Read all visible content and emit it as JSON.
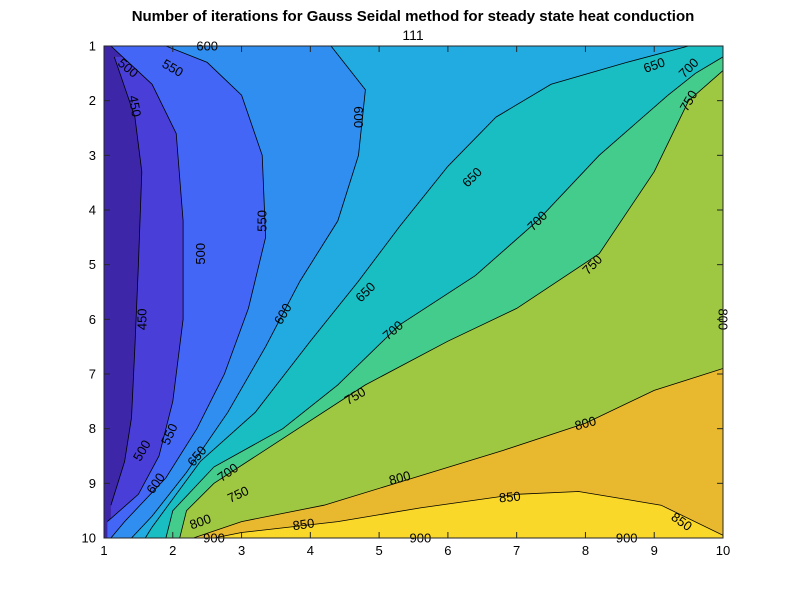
{
  "chart_data": {
    "type": "contour",
    "title": "Number of iterations for Gauss Seidal method for steady state heat conduction",
    "subtitle": "111",
    "xlim": [
      1,
      10
    ],
    "ylim": [
      1,
      10
    ],
    "y_reversed": true,
    "x_ticks": [
      "1",
      "2",
      "3",
      "4",
      "5",
      "6",
      "7",
      "8",
      "9",
      "10"
    ],
    "y_ticks": [
      "1",
      "2",
      "3",
      "4",
      "5",
      "6",
      "7",
      "8",
      "9",
      "10"
    ],
    "levels": [
      450,
      500,
      550,
      600,
      650,
      700,
      750,
      800,
      850,
      900
    ],
    "level_colors": [
      "#3d26a8",
      "#4a3ed9",
      "#4466f7",
      "#2f8ef0",
      "#21abe0",
      "#18bec2",
      "#44cc8c",
      "#9fc842",
      "#e8b92f",
      "#f9d82a"
    ],
    "contours": [
      {
        "level": 450,
        "points": [
          [
            1.15,
            1.2
          ],
          [
            1.45,
            2.3
          ],
          [
            1.55,
            3.3
          ],
          [
            1.5,
            5.0
          ],
          [
            1.45,
            6.5
          ],
          [
            1.4,
            7.8
          ],
          [
            1.3,
            8.6
          ],
          [
            1.1,
            9.4
          ]
        ]
      },
      {
        "level": 500,
        "points": [
          [
            1.1,
            1.0
          ],
          [
            1.7,
            1.7
          ],
          [
            2.05,
            2.6
          ],
          [
            2.15,
            4.2
          ],
          [
            2.15,
            6.0
          ],
          [
            2.0,
            7.5
          ],
          [
            1.8,
            8.5
          ],
          [
            1.5,
            9.2
          ],
          [
            1.05,
            9.7
          ]
        ]
      },
      {
        "level": 550,
        "points": [
          [
            1.9,
            1.0
          ],
          [
            2.5,
            1.3
          ],
          [
            3.0,
            1.9
          ],
          [
            3.3,
            3.0
          ],
          [
            3.35,
            4.5
          ],
          [
            3.1,
            5.8
          ],
          [
            2.75,
            7.0
          ],
          [
            2.35,
            8.0
          ],
          [
            1.9,
            8.9
          ],
          [
            1.3,
            9.7
          ],
          [
            1.1,
            10.0
          ]
        ]
      },
      {
        "level": 600,
        "points": [
          [
            3.0,
            1.0
          ],
          [
            4.3,
            1.0
          ],
          [
            4.8,
            1.8
          ],
          [
            4.7,
            3.0
          ],
          [
            4.4,
            4.2
          ],
          [
            3.85,
            5.3
          ],
          [
            3.35,
            6.5
          ],
          [
            2.8,
            7.7
          ],
          [
            2.2,
            8.8
          ],
          [
            1.7,
            9.6
          ],
          [
            1.4,
            10.0
          ]
        ]
      },
      {
        "level": 650,
        "points": [
          [
            9.5,
            1.0
          ],
          [
            8.6,
            1.3
          ],
          [
            7.5,
            1.7
          ],
          [
            6.7,
            2.3
          ],
          [
            6.0,
            3.2
          ],
          [
            5.3,
            4.3
          ],
          [
            4.7,
            5.3
          ],
          [
            4.0,
            6.4
          ],
          [
            3.2,
            7.7
          ],
          [
            2.4,
            8.6
          ],
          [
            1.7,
            9.8
          ],
          [
            1.6,
            10.0
          ]
        ]
      },
      {
        "level": 700,
        "points": [
          [
            10.0,
            1.2
          ],
          [
            9.6,
            1.5
          ],
          [
            9.2,
            1.9
          ],
          [
            8.2,
            3.0
          ],
          [
            7.3,
            4.2
          ],
          [
            6.4,
            5.2
          ],
          [
            5.3,
            6.1
          ],
          [
            4.4,
            7.2
          ],
          [
            3.6,
            8.0
          ],
          [
            2.6,
            8.7
          ],
          [
            2.0,
            9.5
          ],
          [
            1.9,
            10.0
          ]
        ]
      },
      {
        "level": 750,
        "points": [
          [
            10.0,
            1.45
          ],
          [
            9.5,
            2.0
          ],
          [
            9.0,
            3.3
          ],
          [
            8.2,
            4.8
          ],
          [
            7.0,
            5.8
          ],
          [
            6.0,
            6.4
          ],
          [
            4.8,
            7.2
          ],
          [
            3.7,
            8.1
          ],
          [
            2.6,
            9.0
          ],
          [
            2.2,
            9.5
          ],
          [
            2.1,
            10.0
          ]
        ]
      },
      {
        "level": 800,
        "points": [
          [
            10.0,
            6.9
          ],
          [
            9.0,
            7.3
          ],
          [
            8.0,
            7.9
          ],
          [
            6.8,
            8.4
          ],
          [
            5.5,
            8.9
          ],
          [
            4.2,
            9.4
          ],
          [
            3.0,
            9.7
          ],
          [
            2.3,
            10.0
          ]
        ]
      },
      {
        "level": 850,
        "points": [
          [
            10.0,
            9.95
          ],
          [
            9.1,
            9.4
          ],
          [
            7.9,
            9.15
          ],
          [
            7.0,
            9.2
          ],
          [
            5.6,
            9.45
          ],
          [
            4.4,
            9.7
          ],
          [
            3.0,
            9.9
          ],
          [
            2.6,
            10.0
          ]
        ]
      }
    ],
    "contour_labels": [
      {
        "text": "450",
        "at": [
          1.45,
          2.1
        ],
        "angle": 80
      },
      {
        "text": "450",
        "at": [
          1.55,
          6.0
        ],
        "angle": -90
      },
      {
        "text": "500",
        "at": [
          1.35,
          1.4
        ],
        "angle": 40
      },
      {
        "text": "500",
        "at": [
          2.4,
          4.8
        ],
        "angle": -90
      },
      {
        "text": "500",
        "at": [
          1.55,
          8.4
        ],
        "angle": -60
      },
      {
        "text": "550",
        "at": [
          2.0,
          1.4
        ],
        "angle": 30
      },
      {
        "text": "550",
        "at": [
          3.3,
          4.2
        ],
        "angle": -90
      },
      {
        "text": "550",
        "at": [
          1.95,
          8.1
        ],
        "angle": -65
      },
      {
        "text": "600",
        "at": [
          2.5,
          1.0
        ],
        "angle": 0
      },
      {
        "text": "600",
        "at": [
          4.7,
          2.3
        ],
        "angle": 90
      },
      {
        "text": "600",
        "at": [
          3.6,
          5.9
        ],
        "angle": -60
      },
      {
        "text": "600",
        "at": [
          1.75,
          9.0
        ],
        "angle": -55
      },
      {
        "text": "650",
        "at": [
          9.0,
          1.35
        ],
        "angle": -20
      },
      {
        "text": "650",
        "at": [
          6.35,
          3.4
        ],
        "angle": -45
      },
      {
        "text": "650",
        "at": [
          4.8,
          5.5
        ],
        "angle": -45
      },
      {
        "text": "650",
        "at": [
          2.35,
          8.5
        ],
        "angle": -50
      },
      {
        "text": "700",
        "at": [
          9.5,
          1.4
        ],
        "angle": -45
      },
      {
        "text": "700",
        "at": [
          7.3,
          4.2
        ],
        "angle": -45
      },
      {
        "text": "700",
        "at": [
          5.2,
          6.2
        ],
        "angle": -40
      },
      {
        "text": "700",
        "at": [
          2.8,
          8.8
        ],
        "angle": -35
      },
      {
        "text": "750",
        "at": [
          9.5,
          2.0
        ],
        "angle": -60
      },
      {
        "text": "750",
        "at": [
          8.1,
          5.0
        ],
        "angle": -45
      },
      {
        "text": "750",
        "at": [
          4.65,
          7.4
        ],
        "angle": -30
      },
      {
        "text": "750",
        "at": [
          2.95,
          9.2
        ],
        "angle": -25
      },
      {
        "text": "800",
        "at": [
          10.0,
          6.0
        ],
        "angle": 90
      },
      {
        "text": "800",
        "at": [
          8.0,
          7.9
        ],
        "angle": -15
      },
      {
        "text": "800",
        "at": [
          5.3,
          8.9
        ],
        "angle": -15
      },
      {
        "text": "800",
        "at": [
          2.4,
          9.7
        ],
        "angle": -20
      },
      {
        "text": "850",
        "at": [
          6.9,
          9.25
        ],
        "angle": -5
      },
      {
        "text": "850",
        "at": [
          3.9,
          9.75
        ],
        "angle": -8
      },
      {
        "text": "850",
        "at": [
          9.4,
          9.7
        ],
        "angle": 35
      },
      {
        "text": "900",
        "at": [
          2.6,
          10.0
        ],
        "angle": 0
      },
      {
        "text": "900",
        "at": [
          5.6,
          10.0
        ],
        "angle": 0
      },
      {
        "text": "900",
        "at": [
          8.6,
          10.0
        ],
        "angle": 0
      }
    ]
  }
}
